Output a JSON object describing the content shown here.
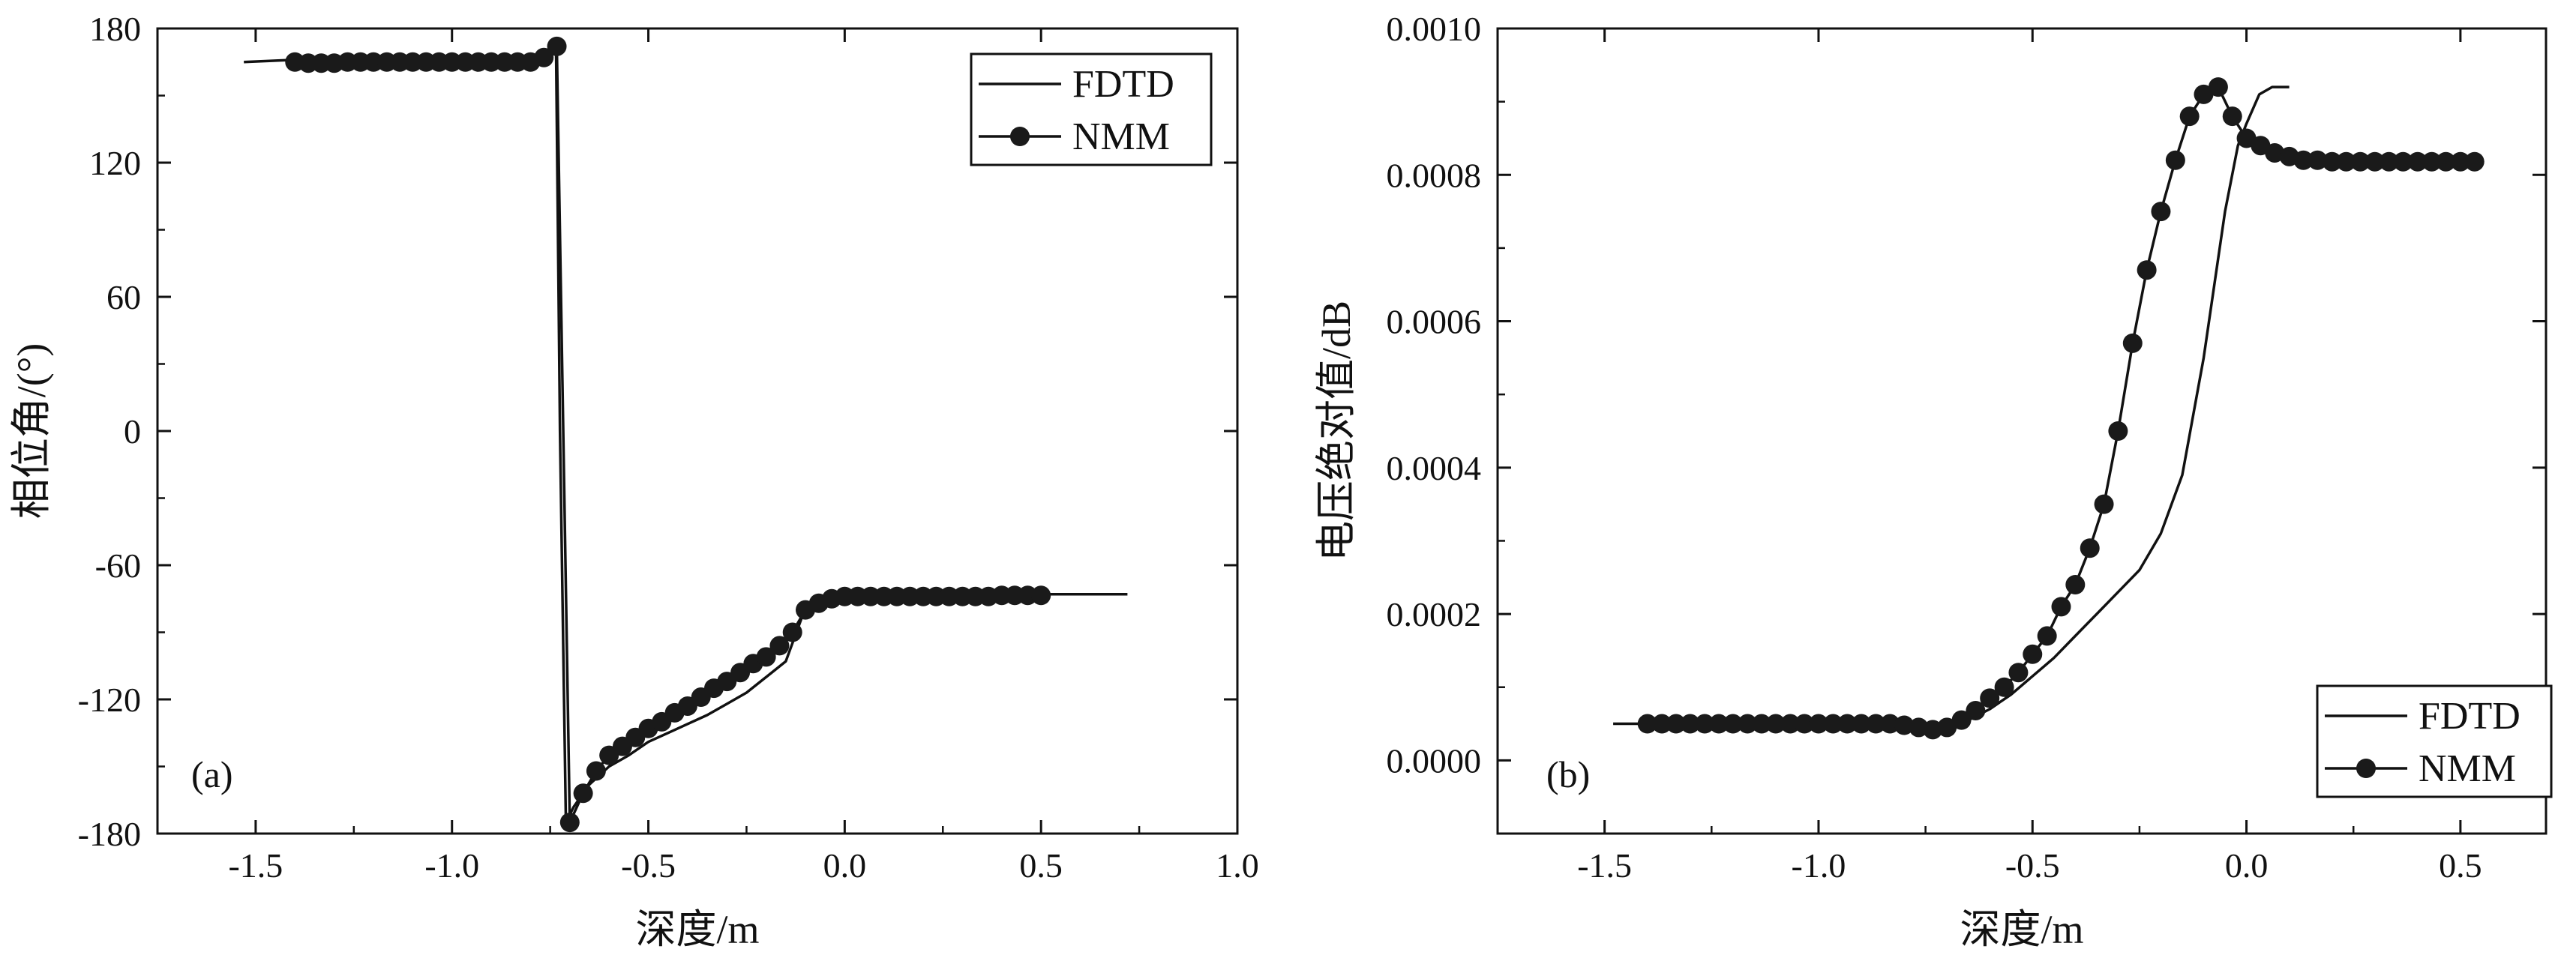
{
  "chart_data": [
    {
      "type": "line",
      "panel_label": "(a)",
      "xlabel": "深度/m",
      "ylabel": "相位角/(°)",
      "xlim": [
        -1.75,
        1.0
      ],
      "ylim": [
        -180,
        180
      ],
      "xticks": [
        -1.5,
        -1.0,
        -0.5,
        0.0,
        0.5,
        1.0
      ],
      "yticks": [
        -180,
        -120,
        -60,
        0,
        60,
        120,
        180
      ],
      "xtick_labels": [
        "-1.5",
        "-1.0",
        "-0.5",
        "0.0",
        "0.5",
        "1.0"
      ],
      "ytick_labels": [
        "-180",
        "-120",
        "-60",
        "0",
        "60",
        "120",
        "180"
      ],
      "legend": {
        "position": "top-right",
        "entries": [
          "FDTD",
          "NMM"
        ]
      },
      "series": [
        {
          "name": "FDTD",
          "marker": "none",
          "x": [
            -1.53,
            -1.4,
            -1.3,
            -1.2,
            -1.1,
            -1.0,
            -0.9,
            -0.8,
            -0.76,
            -0.735,
            -0.725,
            -0.71,
            -0.69,
            -0.65,
            -0.6,
            -0.55,
            -0.5,
            -0.45,
            -0.4,
            -0.35,
            -0.3,
            -0.25,
            -0.2,
            -0.15,
            -0.1,
            -0.05,
            0.0,
            0.1,
            0.2,
            0.3,
            0.4,
            0.5,
            0.6,
            0.72
          ],
          "y": [
            165,
            166,
            166,
            166,
            166,
            166,
            166,
            166,
            167,
            170,
            0,
            -175,
            -168,
            -158,
            -150,
            -145,
            -139,
            -135,
            -131,
            -127,
            -122,
            -117,
            -110,
            -103,
            -79,
            -75,
            -74,
            -74,
            -74,
            -74,
            -74,
            -73,
            -73,
            -73
          ]
        },
        {
          "name": "NMM",
          "marker": "circle",
          "x": [
            -1.4,
            -1.366,
            -1.333,
            -1.3,
            -1.266,
            -1.233,
            -1.2,
            -1.166,
            -1.133,
            -1.1,
            -1.066,
            -1.033,
            -1.0,
            -0.966,
            -0.933,
            -0.9,
            -0.866,
            -0.833,
            -0.8,
            -0.766,
            -0.733,
            -0.7,
            -0.666,
            -0.633,
            -0.6,
            -0.566,
            -0.533,
            -0.5,
            -0.466,
            -0.433,
            -0.4,
            -0.366,
            -0.333,
            -0.3,
            -0.266,
            -0.233,
            -0.2,
            -0.166,
            -0.133,
            -0.1,
            -0.066,
            -0.033,
            0.0,
            0.033,
            0.066,
            0.1,
            0.133,
            0.166,
            0.2,
            0.233,
            0.266,
            0.3,
            0.333,
            0.366,
            0.4,
            0.433,
            0.466,
            0.5
          ],
          "y": [
            165,
            164.5,
            164.5,
            164.5,
            165,
            165,
            165,
            165,
            165,
            165,
            165,
            165,
            165,
            165,
            165,
            165,
            165,
            165,
            165,
            167,
            172,
            -175,
            -162,
            -152,
            -145,
            -141,
            -137,
            -133,
            -130,
            -126,
            -123,
            -119,
            -115,
            -112,
            -108,
            -104,
            -101,
            -96,
            -90,
            -80,
            -77,
            -75,
            -74,
            -74,
            -74,
            -74,
            -74,
            -74,
            -74,
            -74,
            -74,
            -74,
            -74,
            -74,
            -73.5,
            -73.5,
            -73.5,
            -73.5
          ]
        }
      ]
    },
    {
      "type": "line",
      "panel_label": "(b)",
      "xlabel": "深度/m",
      "ylabel": "电压绝对值/dB",
      "xlim": [
        -1.75,
        0.7
      ],
      "ylim": [
        -0.0001,
        0.001
      ],
      "xticks": [
        -1.5,
        -1.0,
        -0.5,
        0.0,
        0.5
      ],
      "yticks": [
        0.0,
        0.0002,
        0.0004,
        0.0006,
        0.0008,
        0.001
      ],
      "xtick_labels": [
        "-1.5",
        "-1.0",
        "-0.5",
        "0.0",
        "0.5"
      ],
      "ytick_labels": [
        "0.0000",
        "0.0002",
        "0.0004",
        "0.0006",
        "0.0008",
        "0.0010"
      ],
      "legend": {
        "position": "bottom-right",
        "entries": [
          "FDTD",
          "NMM"
        ]
      },
      "series": [
        {
          "name": "FDTD",
          "marker": "none",
          "x": [
            -1.48,
            -1.4,
            -1.3,
            -1.2,
            -1.1,
            -1.0,
            -0.9,
            -0.8,
            -0.75,
            -0.7,
            -0.65,
            -0.6,
            -0.55,
            -0.5,
            -0.45,
            -0.4,
            -0.35,
            -0.3,
            -0.25,
            -0.2,
            -0.15,
            -0.1,
            -0.05,
            -0.02,
            0.0,
            0.03,
            0.06,
            0.1
          ],
          "y": [
            5e-05,
            5e-05,
            5e-05,
            5e-05,
            5e-05,
            5e-05,
            5e-05,
            4.8e-05,
            4.5e-05,
            4.8e-05,
            5.5e-05,
            7e-05,
            9e-05,
            0.000115,
            0.00014,
            0.00017,
            0.0002,
            0.00023,
            0.00026,
            0.00031,
            0.00039,
            0.00055,
            0.00075,
            0.00084,
            0.00087,
            0.00091,
            0.00092,
            0.00092
          ]
        },
        {
          "name": "NMM",
          "marker": "circle",
          "x": [
            -1.4,
            -1.366,
            -1.333,
            -1.3,
            -1.266,
            -1.233,
            -1.2,
            -1.166,
            -1.133,
            -1.1,
            -1.066,
            -1.033,
            -1.0,
            -0.966,
            -0.933,
            -0.9,
            -0.866,
            -0.833,
            -0.8,
            -0.766,
            -0.733,
            -0.7,
            -0.666,
            -0.633,
            -0.6,
            -0.566,
            -0.533,
            -0.5,
            -0.466,
            -0.433,
            -0.4,
            -0.366,
            -0.333,
            -0.3,
            -0.266,
            -0.233,
            -0.2,
            -0.166,
            -0.133,
            -0.1,
            -0.066,
            -0.033,
            0.0,
            0.033,
            0.066,
            0.1,
            0.133,
            0.166,
            0.2,
            0.233,
            0.266,
            0.3,
            0.333,
            0.366,
            0.4,
            0.433,
            0.466,
            0.5,
            0.533
          ],
          "y": [
            5e-05,
            5e-05,
            5e-05,
            5e-05,
            5e-05,
            5e-05,
            5e-05,
            5e-05,
            5e-05,
            5e-05,
            5e-05,
            5e-05,
            5e-05,
            5e-05,
            5e-05,
            5e-05,
            5e-05,
            5e-05,
            4.8e-05,
            4.5e-05,
            4.2e-05,
            4.5e-05,
            5.5e-05,
            6.8e-05,
            8.5e-05,
            0.0001,
            0.00012,
            0.000145,
            0.00017,
            0.00021,
            0.00024,
            0.00029,
            0.00035,
            0.00045,
            0.00057,
            0.00067,
            0.00075,
            0.00082,
            0.00088,
            0.00091,
            0.00092,
            0.00088,
            0.00085,
            0.00084,
            0.00083,
            0.000825,
            0.00082,
            0.00082,
            0.000818,
            0.000818,
            0.000818,
            0.000818,
            0.000818,
            0.000818,
            0.000818,
            0.000818,
            0.000818,
            0.000818,
            0.000818
          ]
        }
      ]
    }
  ]
}
